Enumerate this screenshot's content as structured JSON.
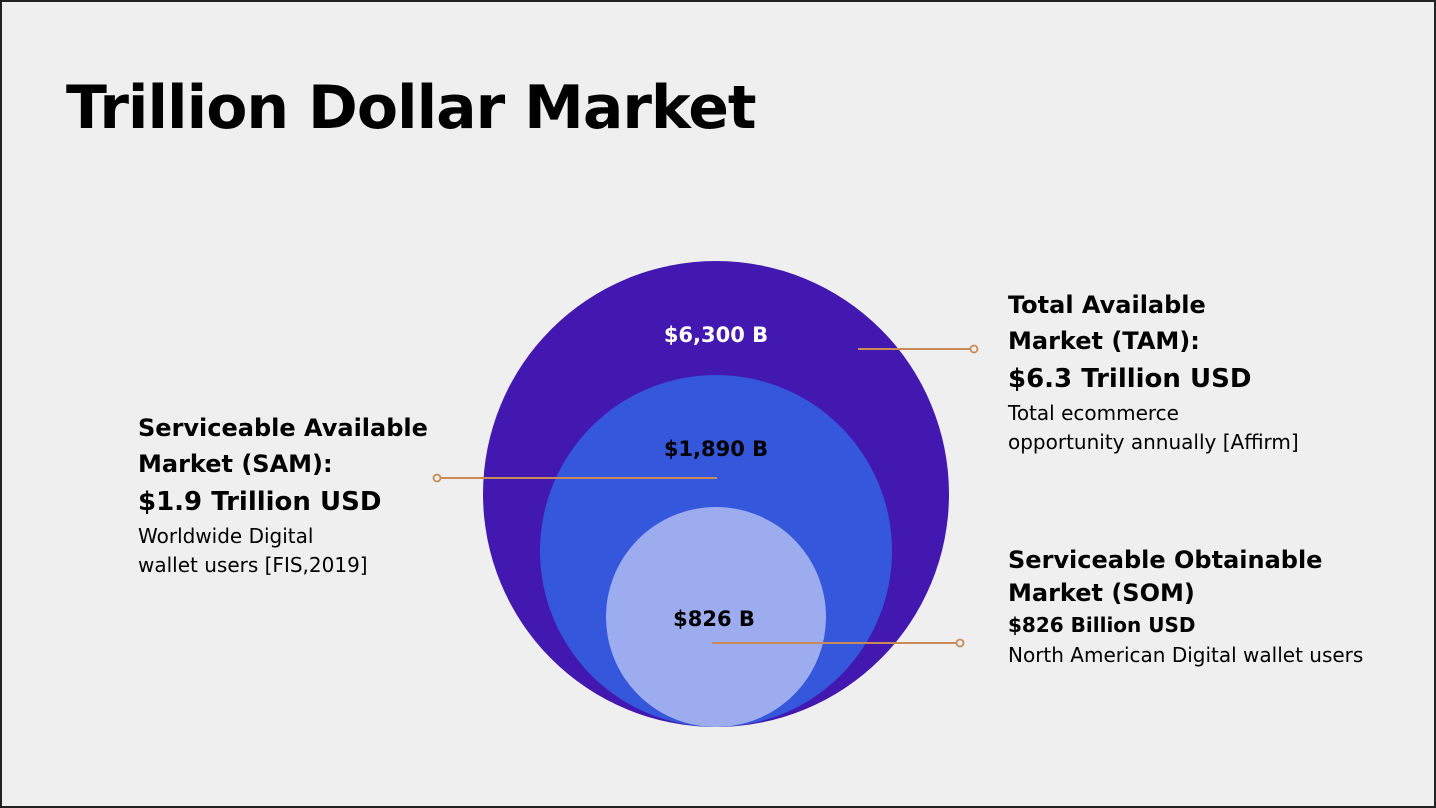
{
  "title": "Trillion Dollar Market",
  "colors": {
    "background": "#efefef",
    "tam_circle": "#4318b0",
    "sam_circle": "#3557db",
    "som_circle": "#9dacef",
    "connector": "#c88a58"
  },
  "circles": {
    "tam_value": "$6,300 B",
    "sam_value": "$1,890 B",
    "som_value": "$826 B"
  },
  "tam": {
    "heading_line1": "Total Available",
    "heading_line2": "Market (TAM):",
    "amount": "$6.3 Trillion USD",
    "desc_line1": "Total ecommerce",
    "desc_line2": "opportunity annually [Affirm]"
  },
  "sam": {
    "heading_line1": "Serviceable Available",
    "heading_line2": "Market (SAM):",
    "amount": "$1.9 Trillion USD",
    "desc_line1": "Worldwide Digital",
    "desc_line2": "wallet users [FIS,2019]"
  },
  "som": {
    "heading_line1": "Serviceable Obtainable",
    "heading_line2": "Market (SOM)",
    "amount": "$826 Billion USD",
    "desc_line1": "North American Digital wallet users"
  }
}
